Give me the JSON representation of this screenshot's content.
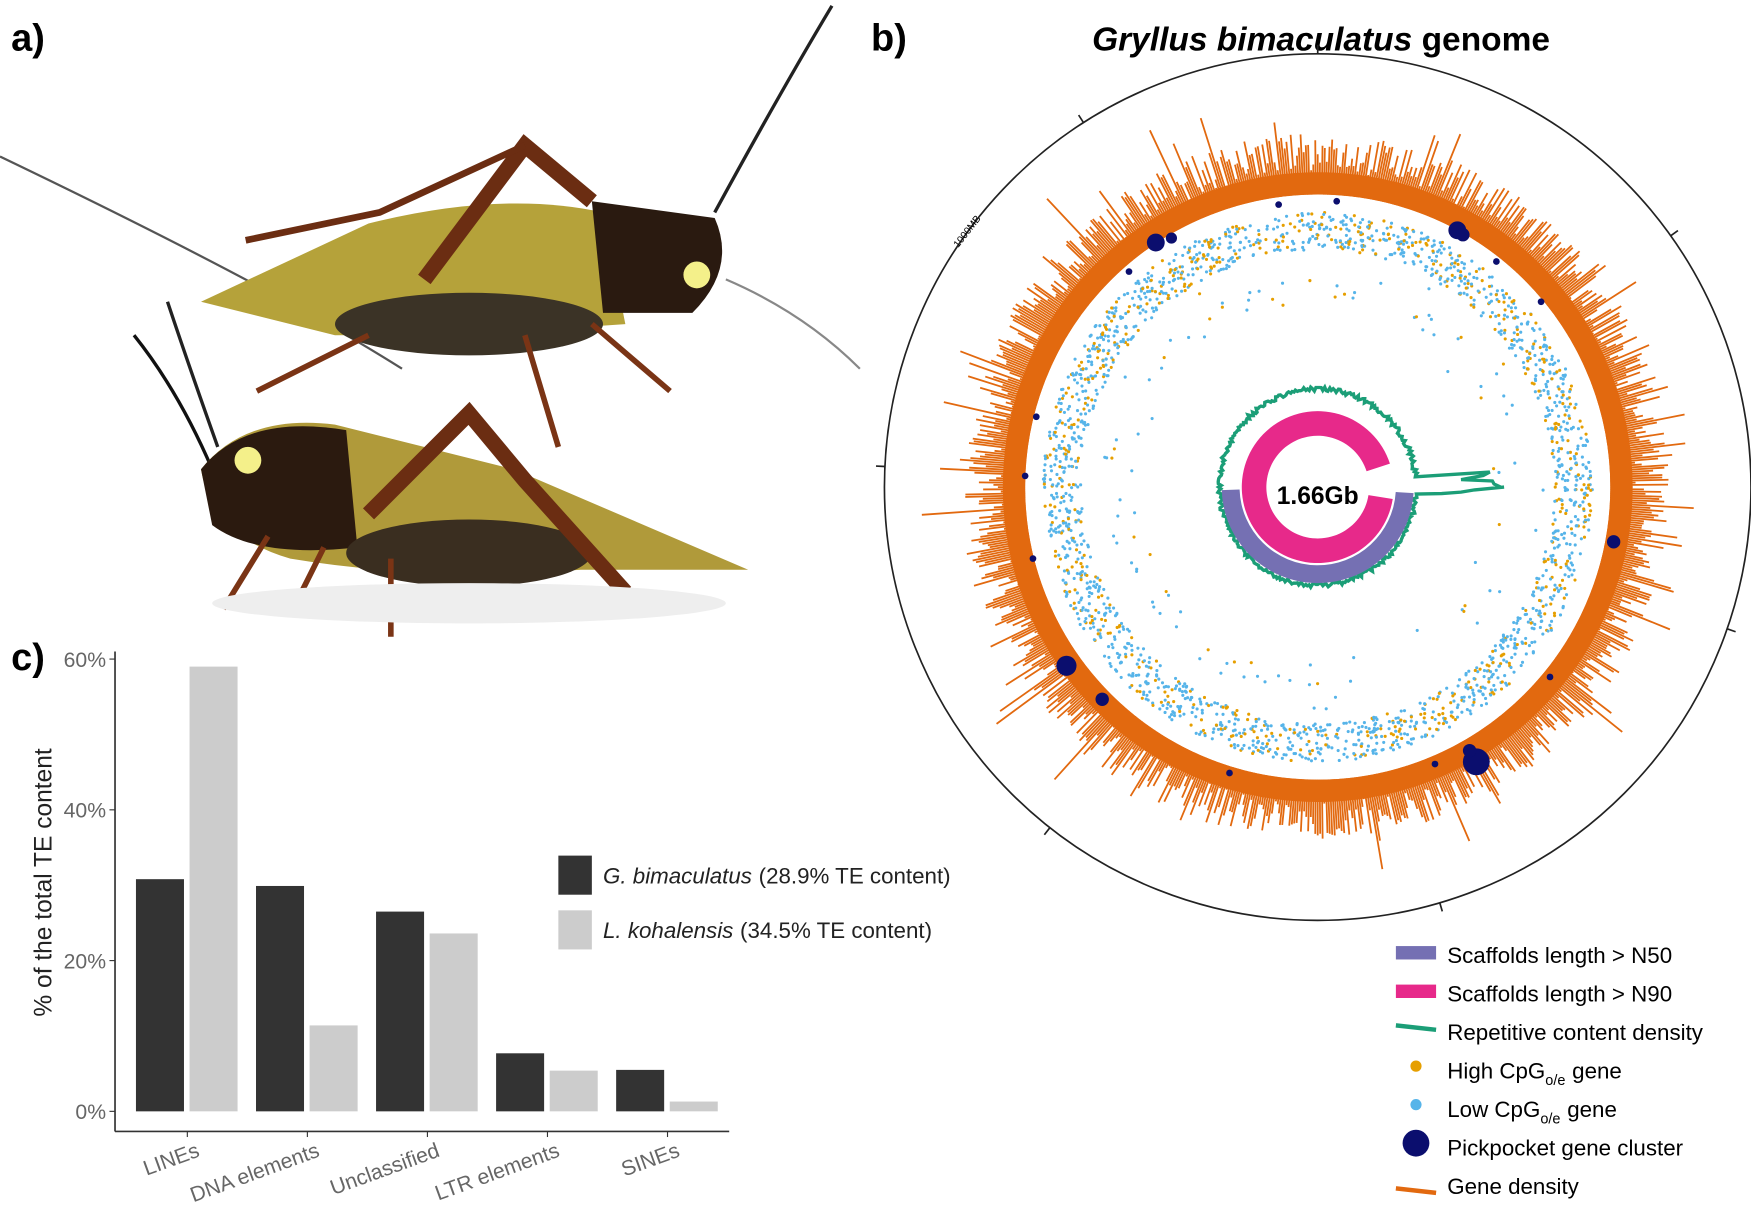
{
  "panels": {
    "a": {
      "label": "a)"
    },
    "b": {
      "label": "b)",
      "title_species": "Gryllus bimaculatus",
      "title_rest": "genome",
      "center_label": "1.66Gb",
      "scale_label": "1000MB",
      "legend": [
        {
          "text": "Scaffolds length > N50"
        },
        {
          "text": "Scaffolds length > N90"
        },
        {
          "text": "Repetitive content density"
        },
        {
          "text": "High CpG",
          "sub": "o/e",
          "after": "gene"
        },
        {
          "text": "Low CpG",
          "sub": "o/e",
          "after": "gene"
        },
        {
          "text": "Pickpocket gene cluster"
        },
        {
          "text": "Gene density"
        }
      ]
    },
    "c": {
      "label": "c)"
    }
  },
  "chart_data": {
    "type": "bar",
    "ylabel": "% of the total TE content",
    "categories": [
      "LINEs",
      "DNA elements",
      "Unclassified",
      "LTR elements",
      "SINEs"
    ],
    "series": [
      {
        "name": "G. bimaculatus",
        "legend_note": "(28.9% TE content)",
        "color": "#333333",
        "values": [
          30.8,
          29.9,
          26.5,
          7.7,
          5.5
        ]
      },
      {
        "name": "L. kohalensis",
        "legend_note": "(34.5% TE content)",
        "color": "#cccccc",
        "values": [
          59,
          11.4,
          23.6,
          5.4,
          1.3
        ]
      }
    ],
    "ylim": [
      0,
      61
    ],
    "yticks": [
      {
        "value": 0,
        "label": "0%"
      },
      {
        "value": 20,
        "label": "20%"
      },
      {
        "value": 40,
        "label": "40%"
      },
      {
        "value": 60,
        "label": "60%"
      }
    ]
  }
}
